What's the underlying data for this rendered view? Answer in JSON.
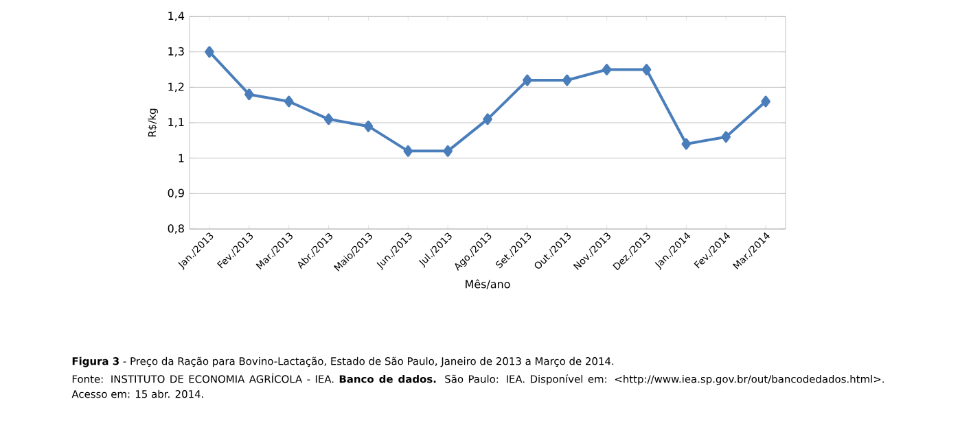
{
  "chart_data": {
    "type": "line",
    "title": "**Figura 3** - Preço da Ração para Bovino-Lactação, Estado de São Paulo, Janeiro de 2013 a Março de 2014.",
    "xlabel": "Mês/ano",
    "ylabel": "R$/kg",
    "categories": [
      "Jan./2013",
      "Fev./2013",
      "Mar./2013",
      "Abr./2013",
      "Maio/2013",
      "Jun./2013",
      "Jul./2013",
      "Ago./2013",
      "Set./2013",
      "Out./2013",
      "Nov./2013",
      "Dez./2013",
      "Jan./2014",
      "Fev./2014",
      "Mar./2014"
    ],
    "series": [
      {
        "color": "#4a7ebb",
        "values": [
          1.3,
          1.18,
          1.16,
          1.11,
          1.09,
          1.02,
          1.02,
          1.11,
          1.22,
          1.22,
          1.25,
          1.25,
          1.04,
          1.06,
          1.16
        ]
      }
    ],
    "ylim": [
      0.8,
      1.4
    ],
    "yticks": [
      {
        "value": 0.8,
        "label": "0,8"
      },
      {
        "value": 0.9,
        "label": "0,9"
      },
      {
        "value": 1,
        "label": "1"
      },
      {
        "value": 1.1,
        "label": "1,1"
      },
      {
        "value": 1.2,
        "label": "1,2"
      },
      {
        "value": 1.3,
        "label": "1,3"
      },
      {
        "value": 1.4,
        "label": "1,4"
      }
    ],
    "grid": "y",
    "marker": "diamond",
    "line_style": "solid",
    "annotations": [
      "Fonte: INSTITUTO DE ECONOMIA AGRÍCOLA - IEA. **Banco de dados.** São Paulo: IEA. Disponível em: <http://www.iea.sp.gov.br/out/bancodedados.html>. Acesso em: 15 abr. 2014."
    ]
  }
}
